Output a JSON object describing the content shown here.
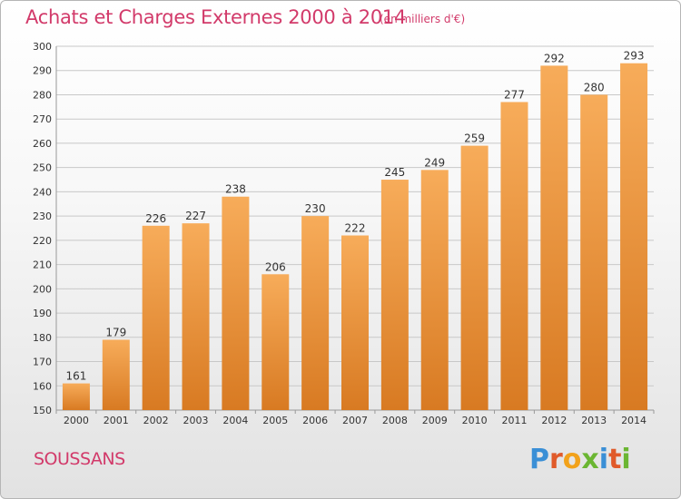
{
  "header": {
    "title": "Achats et Charges Externes 2000 à 2014",
    "unit": "(en milliers d'€)"
  },
  "footer": {
    "city": "SOUSSANS",
    "brand_letters": [
      {
        "char": "P",
        "color": "#3a8fd6"
      },
      {
        "char": "r",
        "color": "#e05a2a"
      },
      {
        "char": "o",
        "color": "#f2a21b"
      },
      {
        "char": "x",
        "color": "#6bb632"
      },
      {
        "char": "i",
        "color": "#3a8fd6"
      },
      {
        "char": "t",
        "color": "#e05a2a"
      },
      {
        "char": "i",
        "color": "#6bb632"
      }
    ]
  },
  "colors": {
    "bar_light": "#f7ac5a",
    "bar_dark": "#d87a22",
    "accent": "#d23a6a",
    "grid": "#c8c8c8"
  },
  "chart_data": {
    "type": "bar",
    "title": "Achats et Charges Externes 2000 à 2014",
    "subtitle": "(en milliers d'€)",
    "categories": [
      "2000",
      "2001",
      "2002",
      "2003",
      "2004",
      "2005",
      "2006",
      "2007",
      "2008",
      "2009",
      "2010",
      "2011",
      "2012",
      "2013",
      "2014"
    ],
    "values": [
      161,
      179,
      226,
      227,
      238,
      206,
      230,
      222,
      245,
      249,
      259,
      277,
      292,
      280,
      293
    ],
    "ylim": [
      150,
      300
    ],
    "yticks": [
      150,
      160,
      170,
      180,
      190,
      200,
      210,
      220,
      230,
      240,
      250,
      260,
      270,
      280,
      290,
      300
    ],
    "grid": true,
    "data_labels": true
  }
}
